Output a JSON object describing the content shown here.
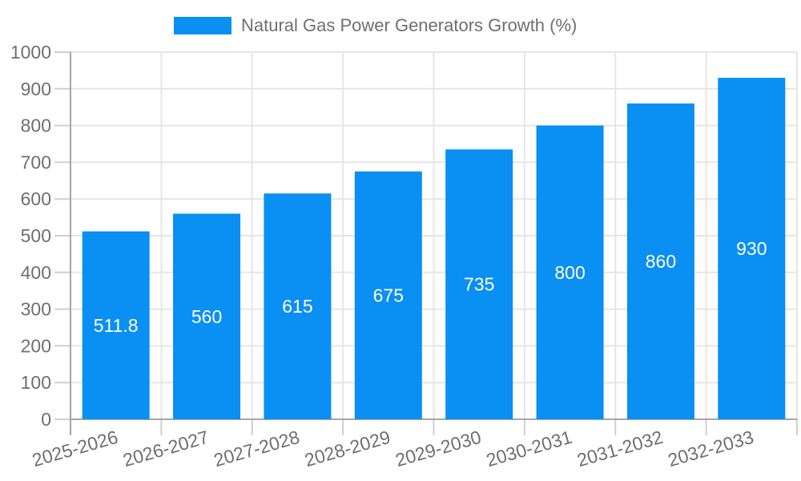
{
  "legend": {
    "label": "Natural Gas Power Generators Growth (%)"
  },
  "chart_data": {
    "type": "bar",
    "title": "Natural Gas Power Generators Growth (%)",
    "categories": [
      "2025-2026",
      "2026-2027",
      "2027-2028",
      "2028-2029",
      "2029-2030",
      "2030-2031",
      "2031-2032",
      "2032-2033"
    ],
    "values": [
      511.8,
      560,
      615,
      675,
      735,
      800,
      860,
      930
    ],
    "value_labels": [
      "511.8",
      "560",
      "615",
      "675",
      "735",
      "800",
      "860",
      "930"
    ],
    "xlabel": "",
    "ylabel": "",
    "ylim": [
      0,
      1000
    ],
    "yticks": [
      0,
      100,
      200,
      300,
      400,
      500,
      600,
      700,
      800,
      900,
      1000
    ],
    "grid": true,
    "legend_position": "top",
    "colors": {
      "bar": "#0a8ff2",
      "grid": "#e6e6e6",
      "axis": "#a6a6a6",
      "tick": "#cfcfcf",
      "tick_label": "#6f6f6f",
      "value_label": "#ffffff"
    }
  }
}
